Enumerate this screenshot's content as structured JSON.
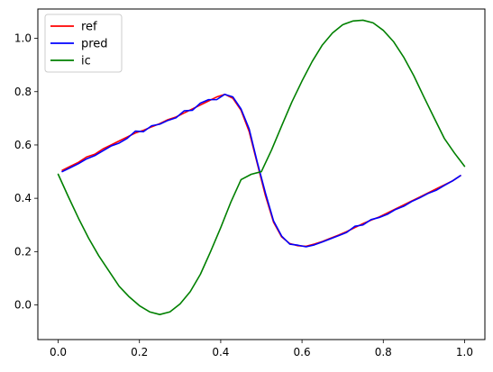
{
  "chart_data": {
    "type": "line",
    "title": "",
    "xlabel": "",
    "ylabel": "",
    "xlim": [
      -0.05,
      1.05
    ],
    "ylim": [
      -0.13,
      1.11
    ],
    "grid": false,
    "legend_position": "top-left",
    "x_ticks": [
      0.0,
      0.2,
      0.4,
      0.6,
      0.8,
      1.0
    ],
    "x_tick_labels": [
      "0.0",
      "0.2",
      "0.4",
      "0.6",
      "0.8",
      "1.0"
    ],
    "y_ticks": [
      0.0,
      0.2,
      0.4,
      0.6,
      0.8,
      1.0
    ],
    "y_tick_labels": [
      "0.0",
      "0.2",
      "0.4",
      "0.6",
      "0.8",
      "1.0"
    ],
    "series": [
      {
        "name": "ref",
        "color": "#ff0000",
        "x": [
          0.01,
          0.03,
          0.05,
          0.07,
          0.09,
          0.11,
          0.13,
          0.15,
          0.17,
          0.19,
          0.21,
          0.23,
          0.25,
          0.27,
          0.29,
          0.31,
          0.33,
          0.35,
          0.37,
          0.39,
          0.41,
          0.43,
          0.45,
          0.47,
          0.49,
          0.51,
          0.53,
          0.55,
          0.57,
          0.59,
          0.61,
          0.63,
          0.65,
          0.67,
          0.69,
          0.71,
          0.73,
          0.75,
          0.77,
          0.79,
          0.81,
          0.83,
          0.85,
          0.87,
          0.89,
          0.91,
          0.93,
          0.95,
          0.97,
          0.99
        ],
        "y": [
          0.505,
          0.52,
          0.535,
          0.555,
          0.565,
          0.585,
          0.6,
          0.615,
          0.63,
          0.645,
          0.655,
          0.668,
          0.68,
          0.695,
          0.705,
          0.72,
          0.735,
          0.75,
          0.765,
          0.78,
          0.79,
          0.775,
          0.73,
          0.65,
          0.53,
          0.41,
          0.31,
          0.255,
          0.23,
          0.222,
          0.22,
          0.228,
          0.238,
          0.25,
          0.262,
          0.275,
          0.29,
          0.305,
          0.318,
          0.33,
          0.345,
          0.36,
          0.375,
          0.39,
          0.405,
          0.42,
          0.435,
          0.45,
          0.465,
          0.485
        ]
      },
      {
        "name": "pred",
        "color": "#0000ff",
        "x": [
          0.01,
          0.03,
          0.05,
          0.07,
          0.09,
          0.11,
          0.13,
          0.15,
          0.17,
          0.19,
          0.21,
          0.23,
          0.25,
          0.27,
          0.29,
          0.31,
          0.33,
          0.35,
          0.37,
          0.39,
          0.41,
          0.43,
          0.45,
          0.47,
          0.49,
          0.51,
          0.53,
          0.55,
          0.57,
          0.59,
          0.61,
          0.63,
          0.65,
          0.67,
          0.69,
          0.71,
          0.73,
          0.75,
          0.77,
          0.79,
          0.81,
          0.83,
          0.85,
          0.87,
          0.89,
          0.91,
          0.93,
          0.95,
          0.97,
          0.99
        ],
        "y": [
          0.5,
          0.515,
          0.53,
          0.548,
          0.56,
          0.578,
          0.596,
          0.607,
          0.625,
          0.652,
          0.65,
          0.672,
          0.678,
          0.692,
          0.702,
          0.728,
          0.73,
          0.757,
          0.77,
          0.77,
          0.79,
          0.78,
          0.735,
          0.66,
          0.535,
          0.42,
          0.315,
          0.258,
          0.228,
          0.224,
          0.218,
          0.225,
          0.236,
          0.248,
          0.26,
          0.272,
          0.295,
          0.3,
          0.32,
          0.328,
          0.34,
          0.358,
          0.37,
          0.388,
          0.402,
          0.418,
          0.43,
          0.448,
          0.465,
          0.485
        ]
      },
      {
        "name": "ic",
        "color": "#008000",
        "x": [
          0.0,
          0.025,
          0.05,
          0.075,
          0.1,
          0.125,
          0.15,
          0.175,
          0.2,
          0.225,
          0.25,
          0.275,
          0.3,
          0.325,
          0.35,
          0.375,
          0.4,
          0.425,
          0.45,
          0.475,
          0.5,
          0.525,
          0.55,
          0.575,
          0.6,
          0.625,
          0.65,
          0.675,
          0.7,
          0.725,
          0.75,
          0.775,
          0.8,
          0.825,
          0.85,
          0.875,
          0.9,
          0.925,
          0.95,
          0.975,
          1.0
        ],
        "y": [
          0.49,
          0.406,
          0.325,
          0.25,
          0.184,
          0.127,
          0.07,
          0.03,
          -0.003,
          -0.026,
          -0.036,
          -0.026,
          0.004,
          0.05,
          0.115,
          0.2,
          0.29,
          0.386,
          0.47,
          0.49,
          0.5,
          0.581,
          0.672,
          0.761,
          0.84,
          0.913,
          0.975,
          1.02,
          1.051,
          1.065,
          1.068,
          1.058,
          1.03,
          0.988,
          0.93,
          0.86,
          0.78,
          0.702,
          0.625,
          0.57,
          0.52
        ]
      }
    ]
  }
}
